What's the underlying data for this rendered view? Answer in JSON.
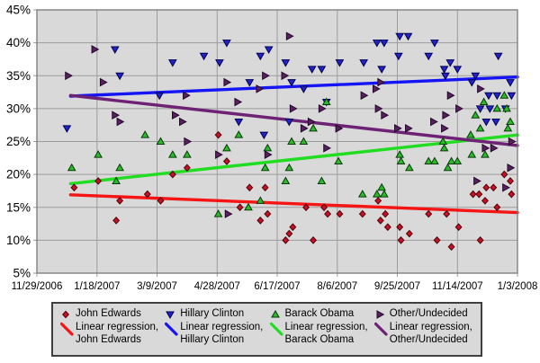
{
  "chart_data": {
    "type": "scatter",
    "title": "",
    "description": "Democratic primary polling 2006-2008 with linear regression trend lines",
    "x_axis": {
      "unit": "date",
      "x_unit_note": "point x values are days since 11/29/2006",
      "tick_labels": [
        "11/29/2006",
        "1/18/2007",
        "3/9/2007",
        "4/28/2007",
        "6/17/2007",
        "8/6/2007",
        "9/25/2007",
        "11/14/2007",
        "1/3/2008"
      ],
      "tick_days": [
        0,
        50,
        100,
        150,
        200,
        250,
        300,
        350,
        400
      ],
      "range_days": [
        0,
        400
      ],
      "grid": true
    },
    "y_axis": {
      "unit": "%",
      "min": 5,
      "max": 45,
      "step": 5,
      "tick_labels": [
        "5%",
        "10%",
        "15%",
        "20%",
        "25%",
        "30%",
        "35%",
        "40%",
        "45%"
      ],
      "grid": true
    },
    "series": [
      {
        "name": "John Edwards",
        "marker": "diamond",
        "fill": "#c41228",
        "edge": "#530008",
        "points": [
          [
            31,
            18
          ],
          [
            51,
            19
          ],
          [
            66,
            13
          ],
          [
            69,
            16
          ],
          [
            92,
            17
          ],
          [
            103,
            16
          ],
          [
            113,
            20
          ],
          [
            125,
            21
          ],
          [
            151,
            26
          ],
          [
            158,
            22
          ],
          [
            169,
            15
          ],
          [
            177,
            18
          ],
          [
            186,
            13
          ],
          [
            190,
            18
          ],
          [
            192,
            14
          ],
          [
            207,
            10
          ],
          [
            210,
            11
          ],
          [
            213,
            12
          ],
          [
            224,
            15
          ],
          [
            230,
            10
          ],
          [
            239,
            15
          ],
          [
            242,
            14
          ],
          [
            252,
            14
          ],
          [
            271,
            14
          ],
          [
            284,
            16
          ],
          [
            286,
            13
          ],
          [
            290,
            14
          ],
          [
            292,
            12
          ],
          [
            302,
            12
          ],
          [
            303,
            10
          ],
          [
            310,
            11
          ],
          [
            326,
            14
          ],
          [
            333,
            10
          ],
          [
            341,
            14
          ],
          [
            345,
            9
          ],
          [
            351,
            12
          ],
          [
            363,
            17
          ],
          [
            368,
            17
          ],
          [
            369,
            10
          ],
          [
            373,
            16
          ],
          [
            374,
            18
          ],
          [
            380,
            18
          ],
          [
            383,
            15
          ],
          [
            389,
            20
          ],
          [
            394,
            19
          ],
          [
            395,
            17
          ]
        ]
      },
      {
        "name": "Hillary Clinton",
        "marker": "triangle-down",
        "fill": "#2323c8",
        "edge": "#00004f",
        "points": [
          [
            25,
            27
          ],
          [
            65,
            39
          ],
          [
            69,
            35
          ],
          [
            102,
            32
          ],
          [
            113,
            37
          ],
          [
            139,
            38
          ],
          [
            152,
            37
          ],
          [
            158,
            40
          ],
          [
            168,
            28
          ],
          [
            177,
            34
          ],
          [
            186,
            38
          ],
          [
            189,
            26
          ],
          [
            193,
            39
          ],
          [
            207,
            37
          ],
          [
            210,
            28
          ],
          [
            212,
            34
          ],
          [
            222,
            33
          ],
          [
            229,
            36
          ],
          [
            237,
            36
          ],
          [
            241,
            31
          ],
          [
            252,
            37
          ],
          [
            272,
            37
          ],
          [
            283,
            40
          ],
          [
            287,
            36
          ],
          [
            289,
            40
          ],
          [
            301,
            38
          ],
          [
            302,
            41
          ],
          [
            309,
            41
          ],
          [
            326,
            38
          ],
          [
            331,
            40
          ],
          [
            339,
            36
          ],
          [
            340,
            35
          ],
          [
            344,
            37
          ],
          [
            350,
            36
          ],
          [
            362,
            34
          ],
          [
            365,
            35
          ],
          [
            369,
            30
          ],
          [
            374,
            28
          ],
          [
            376,
            32
          ],
          [
            377,
            30
          ],
          [
            382,
            28
          ],
          [
            383,
            32
          ],
          [
            384,
            38
          ],
          [
            390,
            30
          ],
          [
            394,
            34
          ],
          [
            395,
            32
          ]
        ]
      },
      {
        "name": "Barack Obama",
        "marker": "triangle-up",
        "fill": "#2db82d",
        "edge": "#053c05",
        "points": [
          [
            29,
            21
          ],
          [
            51,
            23
          ],
          [
            66,
            19
          ],
          [
            69,
            21
          ],
          [
            90,
            26
          ],
          [
            103,
            25
          ],
          [
            113,
            23
          ],
          [
            125,
            23
          ],
          [
            151,
            14
          ],
          [
            158,
            24
          ],
          [
            168,
            26
          ],
          [
            176,
            15
          ],
          [
            186,
            16
          ],
          [
            190,
            21
          ],
          [
            192,
            24
          ],
          [
            207,
            19
          ],
          [
            210,
            21
          ],
          [
            212,
            25
          ],
          [
            222,
            25
          ],
          [
            230,
            27
          ],
          [
            237,
            19
          ],
          [
            241,
            31
          ],
          [
            251,
            22
          ],
          [
            271,
            17
          ],
          [
            283,
            17
          ],
          [
            287,
            18
          ],
          [
            289,
            17
          ],
          [
            302,
            23
          ],
          [
            303,
            22
          ],
          [
            310,
            21
          ],
          [
            326,
            22
          ],
          [
            331,
            22
          ],
          [
            338,
            25
          ],
          [
            339,
            24
          ],
          [
            342,
            21
          ],
          [
            345,
            22
          ],
          [
            350,
            22
          ],
          [
            361,
            26
          ],
          [
            362,
            23
          ],
          [
            365,
            29
          ],
          [
            369,
            27
          ],
          [
            372,
            31
          ],
          [
            373,
            23
          ],
          [
            383,
            30
          ],
          [
            389,
            32
          ],
          [
            391,
            30
          ],
          [
            392,
            27
          ],
          [
            394,
            28
          ]
        ]
      },
      {
        "name": "Other/Undecided",
        "marker": "triangle-right",
        "fill": "#58215e",
        "edge": "#23062b",
        "points": [
          [
            26,
            35
          ],
          [
            48,
            39
          ],
          [
            55,
            34
          ],
          [
            65,
            29
          ],
          [
            69,
            28
          ],
          [
            115,
            29
          ],
          [
            121,
            28
          ],
          [
            124,
            32
          ],
          [
            125,
            25
          ],
          [
            151,
            23
          ],
          [
            158,
            34
          ],
          [
            159,
            14
          ],
          [
            167,
            31
          ],
          [
            185,
            33
          ],
          [
            190,
            35
          ],
          [
            192,
            23
          ],
          [
            206,
            35
          ],
          [
            210,
            41
          ],
          [
            213,
            30
          ],
          [
            222,
            27
          ],
          [
            228,
            28
          ],
          [
            237,
            30
          ],
          [
            241,
            24
          ],
          [
            251,
            27
          ],
          [
            272,
            32
          ],
          [
            282,
            33
          ],
          [
            284,
            30
          ],
          [
            286,
            34
          ],
          [
            289,
            29
          ],
          [
            300,
            27
          ],
          [
            309,
            27
          ],
          [
            330,
            28
          ],
          [
            339,
            27
          ],
          [
            340,
            29
          ],
          [
            344,
            32
          ],
          [
            351,
            30
          ],
          [
            366,
            19
          ],
          [
            369,
            33
          ],
          [
            373,
            24
          ],
          [
            380,
            24
          ],
          [
            390,
            18
          ],
          [
            394,
            21
          ],
          [
            395,
            25
          ]
        ]
      }
    ],
    "regressions": [
      {
        "name": "Linear regression, John Edwards",
        "color": "#f51515",
        "start_day": 28,
        "end_day": 400,
        "start_pct": 16.9,
        "end_pct": 14.2
      },
      {
        "name": "Linear regression, Hillary Clinton",
        "color": "#1414f5",
        "start_day": 28,
        "end_day": 400,
        "start_pct": 31.9,
        "end_pct": 34.8
      },
      {
        "name": "Linear regression, Barack Obama",
        "color": "#21dd21",
        "start_day": 28,
        "end_day": 400,
        "start_pct": 18.6,
        "end_pct": 26.0
      },
      {
        "name": "Linear regression, Other/Undecided",
        "color": "#6e2274",
        "start_day": 28,
        "end_day": 400,
        "start_pct": 32.0,
        "end_pct": 24.4
      }
    ],
    "legend": {
      "position": "bottom",
      "entries": [
        {
          "marker_label": "John Edwards",
          "line_label_1": "Linear regression,",
          "line_label_2": "John Edwards"
        },
        {
          "marker_label": "Hillary Clinton",
          "line_label_1": "Linear regression,",
          "line_label_2": "Hillary Clinton"
        },
        {
          "marker_label": "Barack Obama",
          "line_label_1": "Linear regression,",
          "line_label_2": "Barack Obama"
        },
        {
          "marker_label": "Other/Undecided",
          "line_label_1": "Linear regression,",
          "line_label_2": "Other/Undecided"
        }
      ]
    },
    "colors": {
      "plot_bg": "#d9d9d9",
      "grid": "#9c9c9c",
      "plot_border": "#787878",
      "axis_text": "#000000",
      "legend_bg": "#d9d9d9",
      "legend_border": "#3f3f3f",
      "page_bg": "#ffffff"
    }
  }
}
